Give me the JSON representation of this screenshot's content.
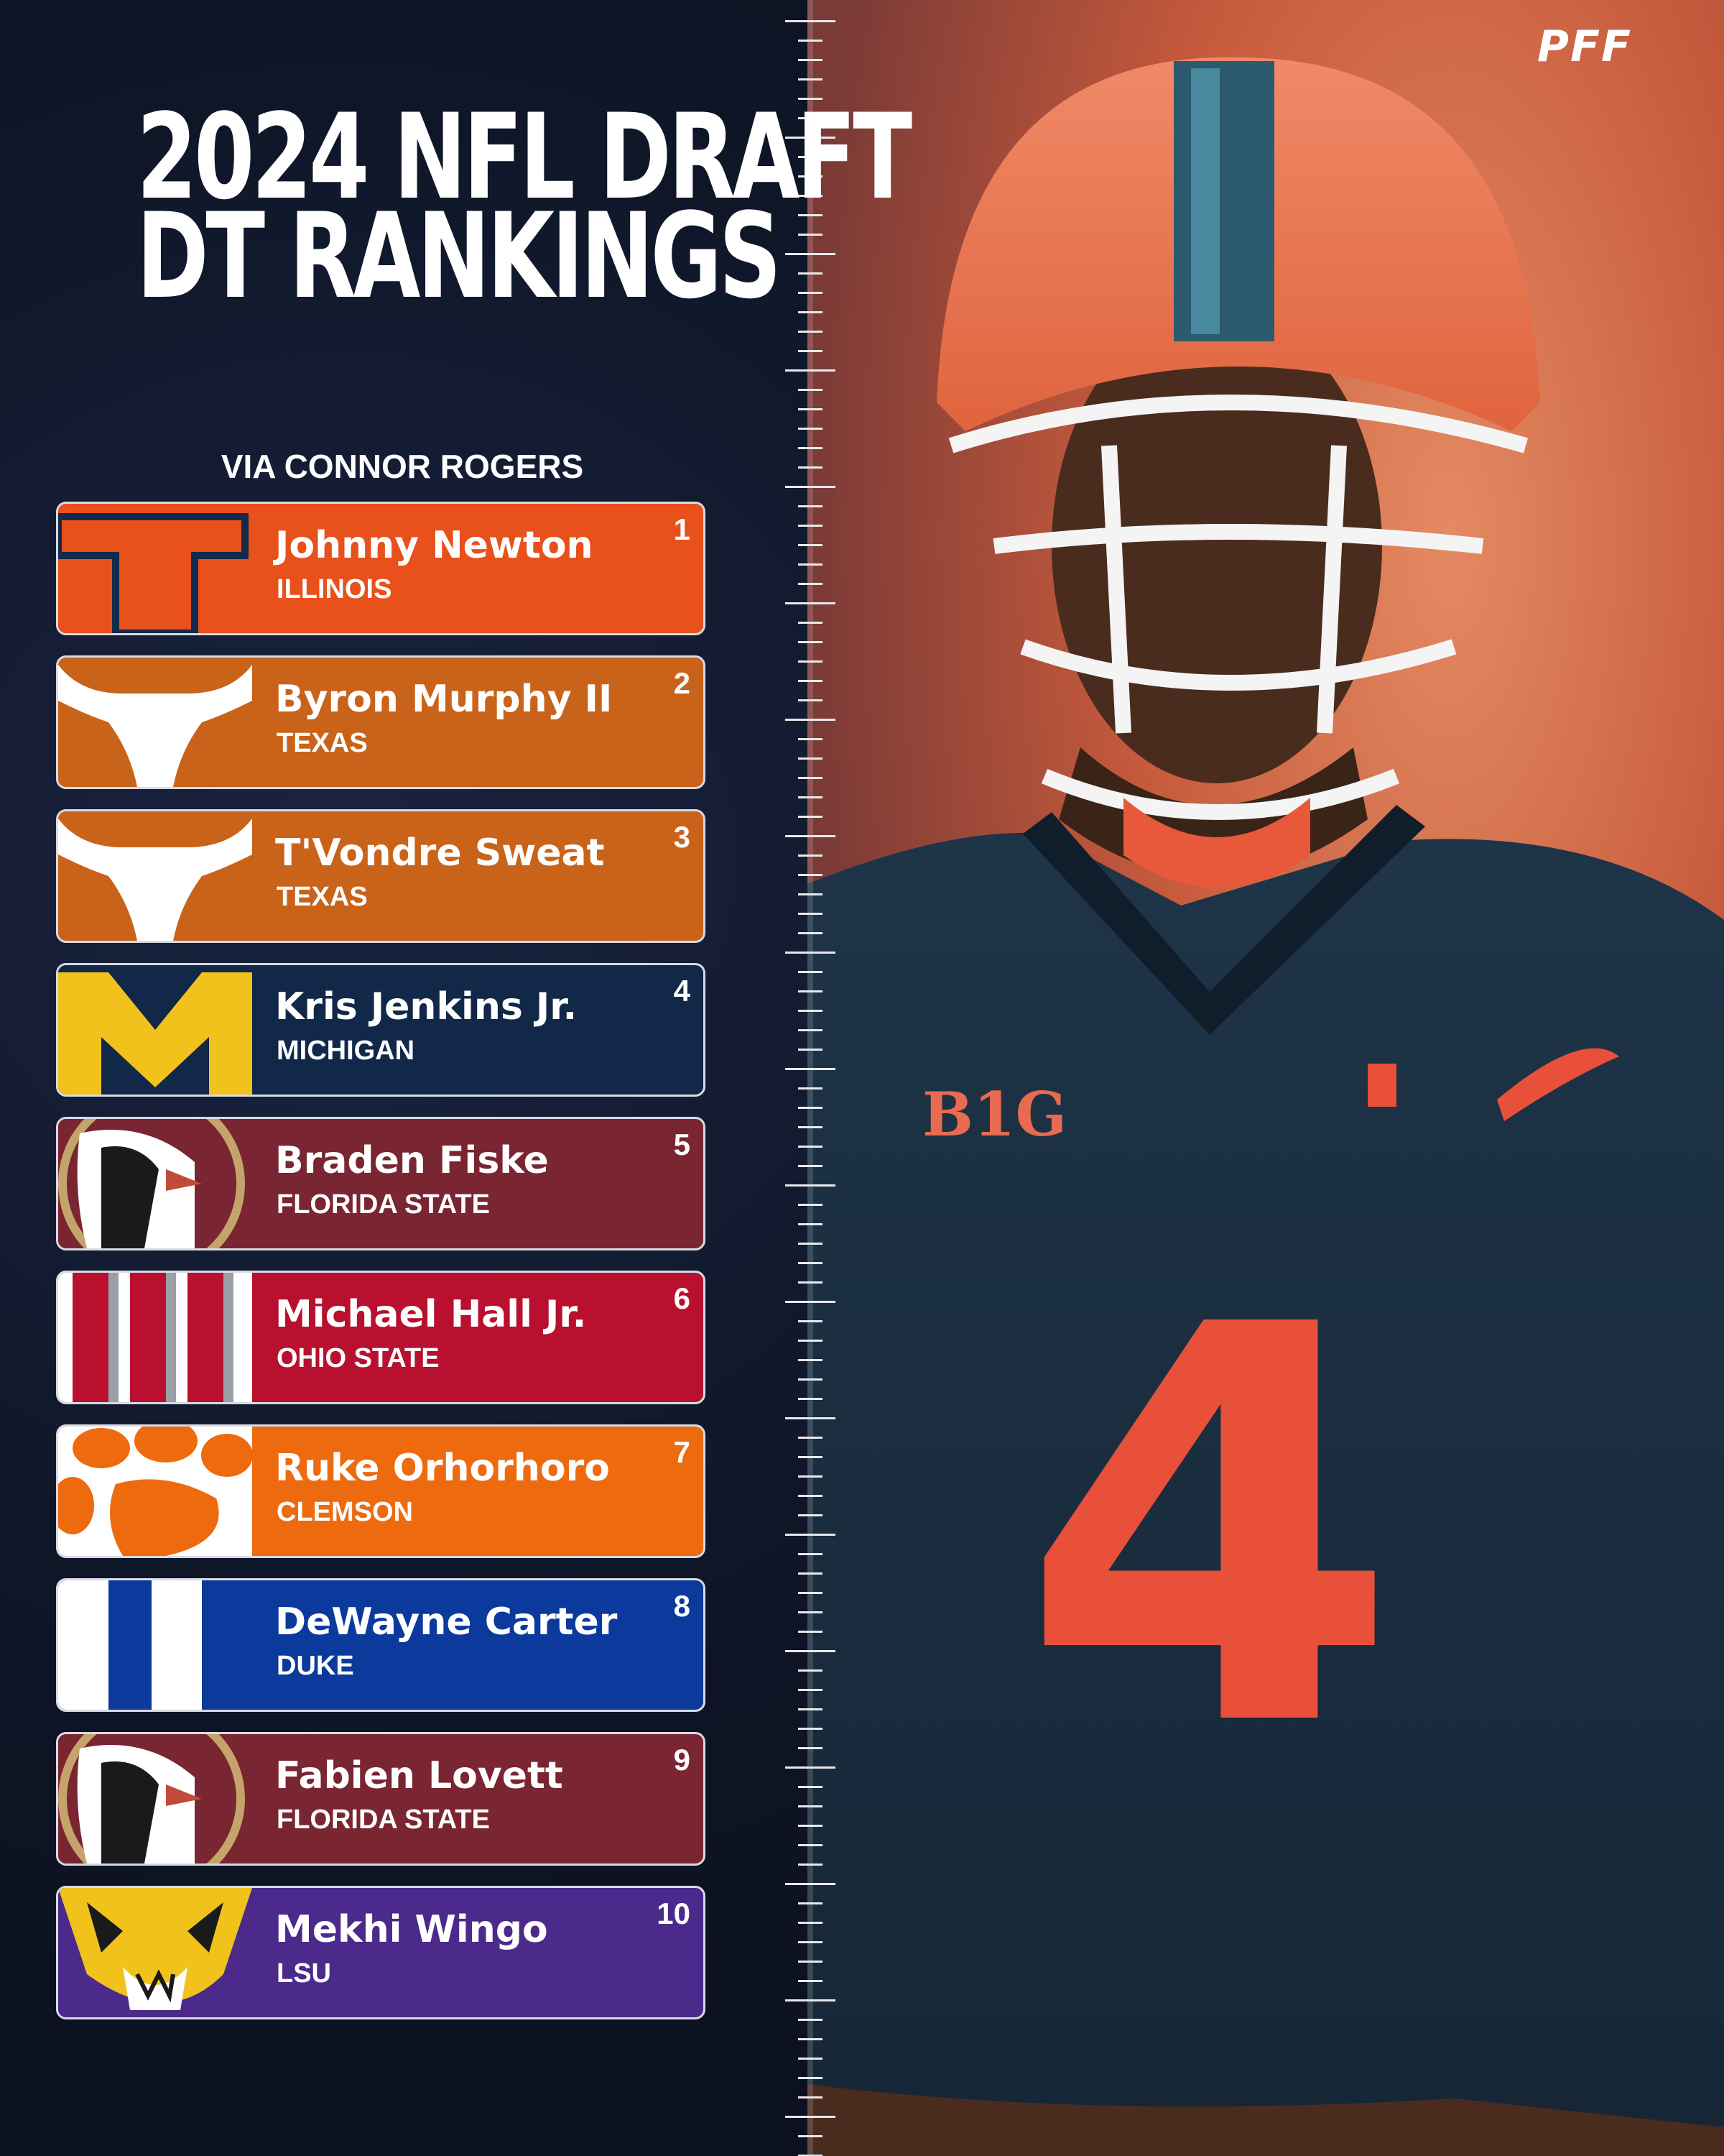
{
  "brand": {
    "logo_text": "PFF"
  },
  "header": {
    "title_line1": "2024 NFL DRAFT",
    "title_line2": "DT RANKINGS",
    "subtitle": "VIA CONNOR ROGERS"
  },
  "rankings": [
    {
      "rank": "1",
      "name": "Johnny Newton",
      "school": "ILLINOIS",
      "color": "#e8501c",
      "logo_icon": "illinois-logo"
    },
    {
      "rank": "2",
      "name": "Byron Murphy II",
      "school": "TEXAS",
      "color": "#c9631a",
      "logo_icon": "texas-longhorn-logo"
    },
    {
      "rank": "3",
      "name": "T'Vondre Sweat",
      "school": "TEXAS",
      "color": "#c9631a",
      "logo_icon": "texas-longhorn-logo"
    },
    {
      "rank": "4",
      "name": "Kris Jenkins Jr.",
      "school": "MICHIGAN",
      "color": "#112848",
      "logo_icon": "michigan-logo"
    },
    {
      "rank": "5",
      "name": "Braden Fiske",
      "school": "FLORIDA STATE",
      "color": "#7a2532",
      "logo_icon": "florida-state-logo"
    },
    {
      "rank": "6",
      "name": "Michael Hall Jr.",
      "school": "OHIO STATE",
      "color": "#b8102e",
      "logo_icon": "ohio-state-logo"
    },
    {
      "rank": "7",
      "name": "Ruke Orhorhoro",
      "school": "CLEMSON",
      "color": "#ee6a0e",
      "logo_icon": "clemson-paw-logo"
    },
    {
      "rank": "8",
      "name": "DeWayne Carter",
      "school": "DUKE",
      "color": "#0b3a9c",
      "logo_icon": "duke-logo"
    },
    {
      "rank": "9",
      "name": "Fabien Lovett",
      "school": "FLORIDA STATE",
      "color": "#7a2532",
      "logo_icon": "florida-state-logo"
    },
    {
      "rank": "10",
      "name": "Mekhi Wingo",
      "school": "LSU",
      "color": "#4b2a8c",
      "logo_icon": "lsu-tiger-logo"
    }
  ],
  "photo": {
    "jersey_number": "4",
    "patch_text": "B1G"
  }
}
